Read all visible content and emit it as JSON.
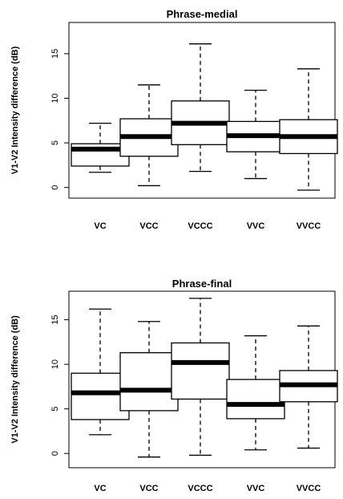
{
  "chart_data": [
    {
      "type": "box",
      "title": "Phrase-medial",
      "ylabel": "V1-V2 Intensity difference (dB)",
      "ylim": [
        -1.2,
        18.5
      ],
      "yticks": [
        0,
        5,
        10,
        15
      ],
      "categories": [
        "VC",
        "VCC",
        "VCCC",
        "VVC",
        "VVCC"
      ],
      "boxes": [
        {
          "whisker_low": 1.7,
          "q1": 2.4,
          "median": 4.3,
          "q3": 4.9,
          "whisker_high": 7.2
        },
        {
          "whisker_low": 0.2,
          "q1": 3.5,
          "median": 5.7,
          "q3": 7.7,
          "whisker_high": 11.5
        },
        {
          "whisker_low": 1.8,
          "q1": 4.8,
          "median": 7.2,
          "q3": 9.7,
          "whisker_high": 16.1
        },
        {
          "whisker_low": 1.0,
          "q1": 4.0,
          "median": 5.8,
          "q3": 7.4,
          "whisker_high": 10.9
        },
        {
          "whisker_low": -0.3,
          "q1": 3.8,
          "median": 5.7,
          "q3": 7.6,
          "whisker_high": 13.3
        }
      ]
    },
    {
      "type": "box",
      "title": "Phrase-final",
      "ylabel": "V1-V2 Intensity difference (dB)",
      "ylim": [
        -1.6,
        18.2
      ],
      "yticks": [
        0,
        5,
        10,
        15
      ],
      "categories": [
        "VC",
        "VCC",
        "VCCC",
        "VVC",
        "VVCC"
      ],
      "boxes": [
        {
          "whisker_low": 2.1,
          "q1": 3.8,
          "median": 6.8,
          "q3": 9.0,
          "whisker_high": 16.2
        },
        {
          "whisker_low": -0.4,
          "q1": 4.8,
          "median": 7.1,
          "q3": 11.3,
          "whisker_high": 14.8
        },
        {
          "whisker_low": -0.2,
          "q1": 6.1,
          "median": 10.2,
          "q3": 12.4,
          "whisker_high": 17.4
        },
        {
          "whisker_low": 0.4,
          "q1": 3.9,
          "median": 5.5,
          "q3": 8.3,
          "whisker_high": 13.2
        },
        {
          "whisker_low": 0.6,
          "q1": 5.8,
          "median": 7.7,
          "q3": 9.3,
          "whisker_high": 14.3
        }
      ]
    }
  ]
}
